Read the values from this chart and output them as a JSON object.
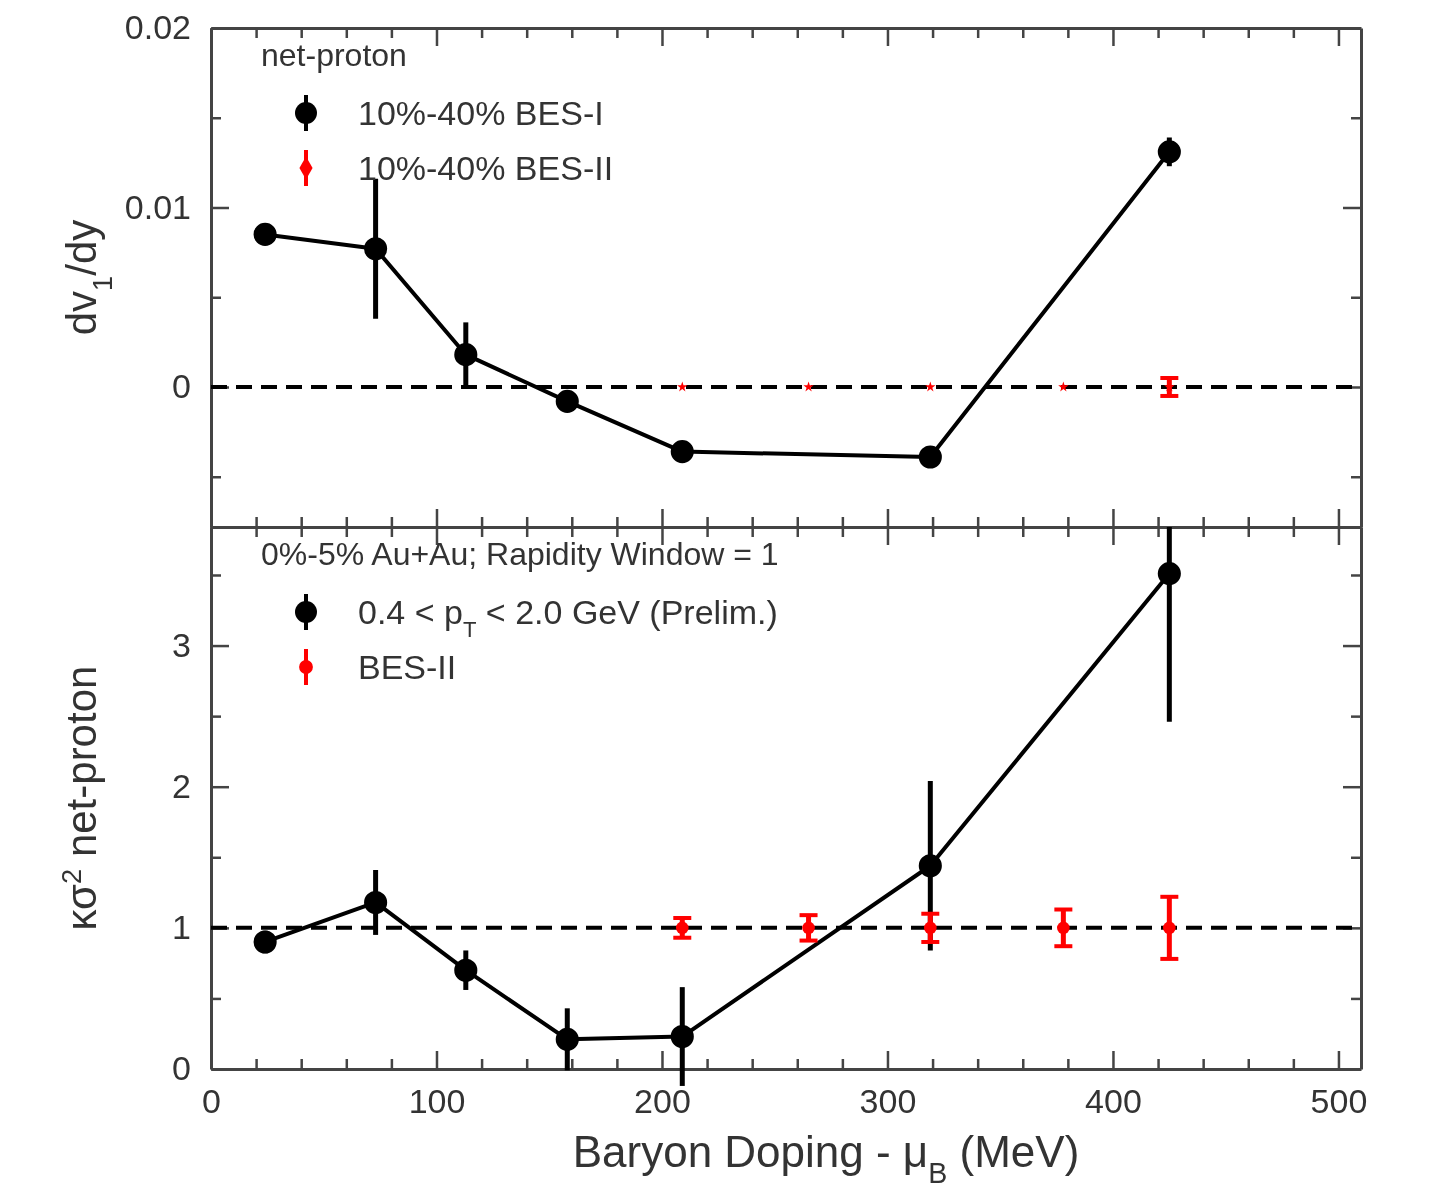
{
  "chart_data": [
    {
      "type": "line",
      "ylabel": "dv$_{1}$/dy",
      "legend_title": "net-proton",
      "legend": "top left",
      "tick_labels": "y",
      "xlim": [
        0,
        510
      ],
      "xticks": [
        0,
        {
          "value": 20,
          "label": null
        },
        {
          "value": 40,
          "label": null
        },
        {
          "value": 60,
          "label": null
        },
        {
          "value": 80,
          "label": null
        },
        100,
        {
          "value": 120,
          "label": null
        },
        {
          "value": 140,
          "label": null
        },
        {
          "value": 160,
          "label": null
        },
        {
          "value": 180,
          "label": null
        },
        200,
        {
          "value": 220,
          "label": null
        },
        {
          "value": 240,
          "label": null
        },
        {
          "value": 260,
          "label": null
        },
        {
          "value": 280,
          "label": null
        },
        300,
        {
          "value": 320,
          "label": null
        },
        {
          "value": 340,
          "label": null
        },
        {
          "value": 360,
          "label": null
        },
        {
          "value": 380,
          "label": null
        },
        400,
        {
          "value": 420,
          "label": null
        },
        {
          "value": 440,
          "label": null
        },
        {
          "value": 460,
          "label": null
        },
        {
          "value": 480,
          "label": null
        },
        500
      ],
      "ylim": [
        -0.0078,
        0.02
      ],
      "yticks": [
        {
          "value": -0.005,
          "label": null
        },
        0,
        {
          "value": 0.005,
          "label": null
        },
        0.01,
        {
          "value": 0.015,
          "label": null
        },
        0.02
      ],
      "ref_lines": [
        {
          "axis": "y",
          "value": 0,
          "color": "#000000",
          "line_style": "dashed"
        }
      ],
      "series": [
        {
          "name": "10%-40% BES-I",
          "type": "line",
          "marker": "circle",
          "color": "#000000",
          "x": [
            24,
            73,
            113,
            158,
            209,
            319,
            425
          ],
          "values": [
            0.0085,
            0.0077,
            0.0018,
            -0.0008,
            -0.0036,
            -0.0039,
            0.0131
          ],
          "errors": [
            0.0005,
            0.0039,
            0.0018,
            0.0005,
            0.0004,
            0.0005,
            0.0008
          ]
        },
        {
          "name": "10%-40% BES-II",
          "type": "scatter",
          "marker": "star",
          "color": "#ff0000",
          "x": [
            209,
            265,
            319,
            378,
            425
          ],
          "values": [
            0,
            0,
            0,
            0,
            0
          ],
          "errors": [
            null,
            null,
            null,
            null,
            0.0005
          ]
        }
      ]
    },
    {
      "type": "line",
      "xlabel": "Baryon Doping - μ$_{B}$  (MeV)",
      "ylabel": "κσ$^{2}$ net-proton",
      "legend_title": "0%-5% Au+Au; Rapidity Window = 1",
      "legend": "top left",
      "xlim": [
        0,
        510
      ],
      "xticks": [
        0,
        {
          "value": 20,
          "label": null
        },
        {
          "value": 40,
          "label": null
        },
        {
          "value": 60,
          "label": null
        },
        {
          "value": 80,
          "label": null
        },
        100,
        {
          "value": 120,
          "label": null
        },
        {
          "value": 140,
          "label": null
        },
        {
          "value": 160,
          "label": null
        },
        {
          "value": 180,
          "label": null
        },
        200,
        {
          "value": 220,
          "label": null
        },
        {
          "value": 240,
          "label": null
        },
        {
          "value": 260,
          "label": null
        },
        {
          "value": 280,
          "label": null
        },
        300,
        {
          "value": 320,
          "label": null
        },
        {
          "value": 340,
          "label": null
        },
        {
          "value": 360,
          "label": null
        },
        {
          "value": 380,
          "label": null
        },
        400,
        {
          "value": 420,
          "label": null
        },
        {
          "value": 440,
          "label": null
        },
        {
          "value": 460,
          "label": null
        },
        {
          "value": 480,
          "label": null
        },
        500
      ],
      "ylim": [
        0,
        3.84
      ],
      "yticks": [
        0,
        {
          "value": 0.5,
          "label": null
        },
        1,
        {
          "value": 1.5,
          "label": null
        },
        2,
        {
          "value": 2.5,
          "label": null
        },
        3,
        {
          "value": 3.5,
          "label": null
        }
      ],
      "ref_lines": [
        {
          "axis": "y",
          "value": 1,
          "color": "#000000",
          "line_style": "dashed"
        }
      ],
      "series": [
        {
          "name": "0.4 < p$_{T}$ < 2.0 GeV (Prelim.)",
          "type": "line",
          "marker": "circle",
          "color": "#000000",
          "x": [
            24,
            73,
            113,
            158,
            209,
            319,
            425
          ],
          "values": [
            0.9,
            1.18,
            0.7,
            0.21,
            0.23,
            1.44,
            3.51
          ],
          "errors": [
            0.08,
            0.23,
            0.14,
            0.22,
            0.35,
            0.6,
            [
              2.46,
              3.84
            ]
          ]
        },
        {
          "name": "BES-II",
          "type": "scatter",
          "marker": "circle",
          "color": "#ff0000",
          "x": [
            209,
            265,
            319,
            378,
            425
          ],
          "values": [
            1,
            1,
            1,
            1,
            1
          ],
          "errors": [
            0.07,
            0.09,
            0.1,
            0.13,
            0.22
          ]
        }
      ]
    }
  ]
}
